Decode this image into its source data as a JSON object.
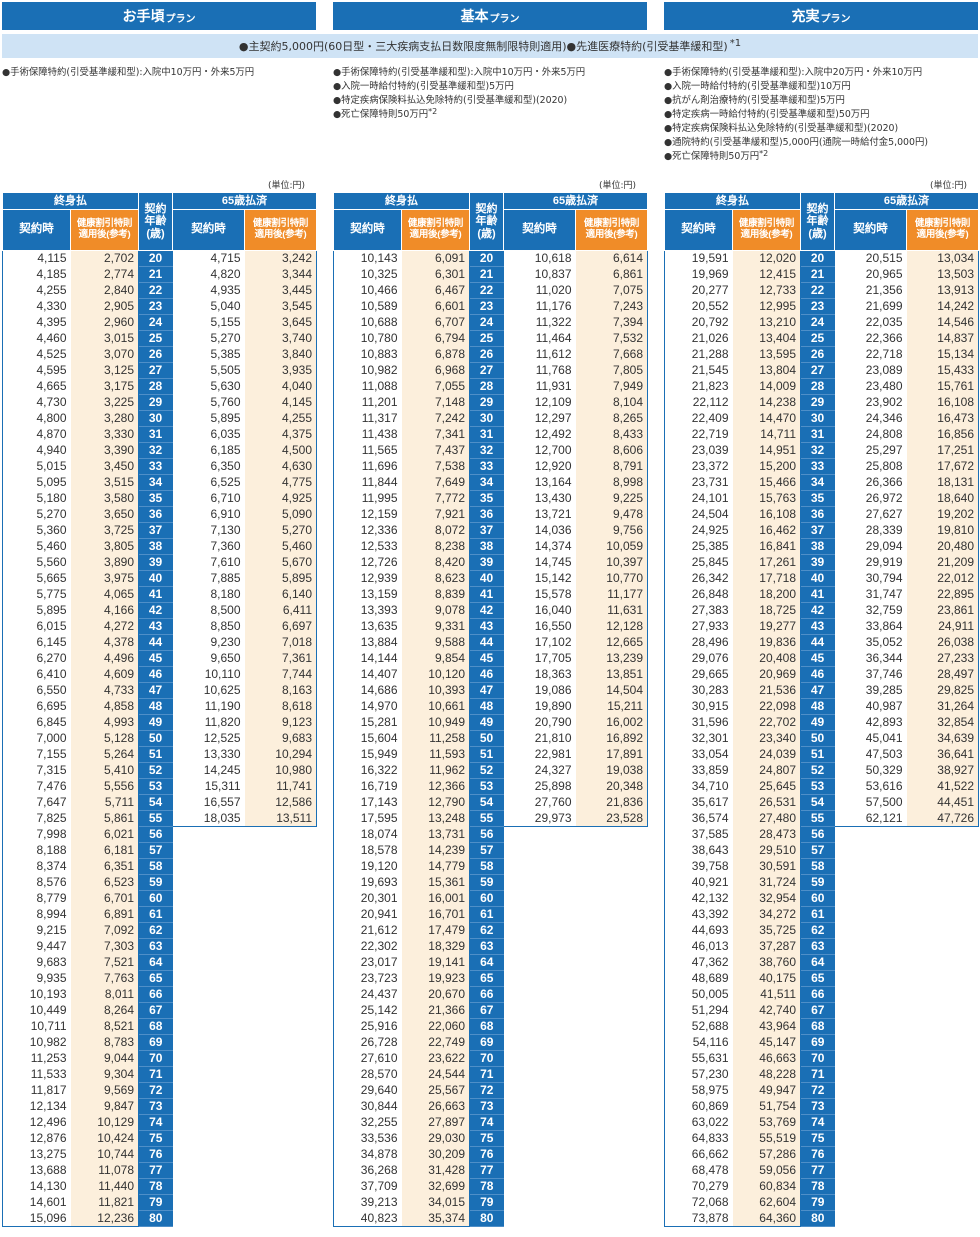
{
  "plans": [
    {
      "name": "お手頃",
      "suffix": "プラン",
      "riders": [
        {
          "text": "●手術保障特約(引受基準緩和型):入院中10万円・外来5万円",
          "mark": ""
        }
      ]
    },
    {
      "name": "基本",
      "suffix": "プラン",
      "riders": [
        {
          "text": "●手術保障特約(引受基準緩和型):入院中10万円・外来5万円",
          "mark": ""
        },
        {
          "text": "●入院一時給付特約(引受基準緩和型)5万円",
          "mark": ""
        },
        {
          "text": "●特定疾病保険料払込免除特約(引受基準緩和型)(2020)",
          "mark": ""
        },
        {
          "text": "●死亡保障特則50万円",
          "mark": "*2"
        }
      ]
    },
    {
      "name": "充実",
      "suffix": "プラン",
      "riders": [
        {
          "text": "●手術保障特約(引受基準緩和型):入院中20万円・外来10万円",
          "mark": ""
        },
        {
          "text": "●入院一時給付特約(引受基準緩和型)10万円",
          "mark": ""
        },
        {
          "text": "●抗がん剤治療特約(引受基準緩和型)5万円",
          "mark": ""
        },
        {
          "text": "●特定疾病一時給付特約(引受基準緩和型)50万円",
          "mark": ""
        },
        {
          "text": "●特定疾病保険料払込免除特約(引受基準緩和型)(2020)",
          "mark": ""
        },
        {
          "text": "●通院特約(引受基準緩和型)5,000円(通院一時給付金5,000円)",
          "mark": ""
        },
        {
          "text": "●死亡保障特則50万円",
          "mark": "*2"
        }
      ]
    }
  ],
  "common": {
    "text": "●主契約5,000円(60日型・三大疾病支払日数限度無制限特則適用)●先進医療特約(引受基準緩和型)",
    "mark": "*1"
  },
  "unit": "(単位:円)",
  "headers": {
    "lifetime": "終身払",
    "paid65": "65歳払済",
    "contract": "契約時",
    "discount": "健康割引特則適用後(参考)",
    "age": "契約年齢(歳)"
  },
  "tables": [
    {
      "lifetime": [
        [
          4115,
          2702
        ],
        [
          4185,
          2774
        ],
        [
          4255,
          2840
        ],
        [
          4330,
          2905
        ],
        [
          4395,
          2960
        ],
        [
          4460,
          3015
        ],
        [
          4525,
          3070
        ],
        [
          4595,
          3125
        ],
        [
          4665,
          3175
        ],
        [
          4730,
          3225
        ],
        [
          4800,
          3280
        ],
        [
          4870,
          3330
        ],
        [
          4940,
          3390
        ],
        [
          5015,
          3450
        ],
        [
          5095,
          3515
        ],
        [
          5180,
          3580
        ],
        [
          5270,
          3650
        ],
        [
          5360,
          3725
        ],
        [
          5460,
          3805
        ],
        [
          5560,
          3890
        ],
        [
          5665,
          3975
        ],
        [
          5775,
          4065
        ],
        [
          5895,
          4166
        ],
        [
          6015,
          4272
        ],
        [
          6145,
          4378
        ],
        [
          6270,
          4496
        ],
        [
          6410,
          4609
        ],
        [
          6550,
          4733
        ],
        [
          6695,
          4858
        ],
        [
          6845,
          4993
        ],
        [
          7000,
          5128
        ],
        [
          7155,
          5264
        ],
        [
          7315,
          5410
        ],
        [
          7476,
          5556
        ],
        [
          7647,
          5711
        ],
        [
          7825,
          5861
        ],
        [
          7998,
          6021
        ],
        [
          8188,
          6181
        ],
        [
          8374,
          6351
        ],
        [
          8576,
          6523
        ],
        [
          8779,
          6701
        ],
        [
          8994,
          6891
        ],
        [
          9215,
          7092
        ],
        [
          9447,
          7303
        ],
        [
          9683,
          7521
        ],
        [
          9935,
          7763
        ],
        [
          10193,
          8011
        ],
        [
          10449,
          8264
        ],
        [
          10711,
          8521
        ],
        [
          10982,
          8783
        ],
        [
          11253,
          9044
        ],
        [
          11533,
          9304
        ],
        [
          11817,
          9569
        ],
        [
          12134,
          9847
        ],
        [
          12496,
          10129
        ],
        [
          12876,
          10424
        ],
        [
          13275,
          10744
        ],
        [
          13688,
          11078
        ],
        [
          14130,
          11440
        ],
        [
          14601,
          11821
        ],
        [
          15096,
          12236
        ]
      ],
      "paid65": [
        [
          4715,
          3242
        ],
        [
          4820,
          3344
        ],
        [
          4935,
          3445
        ],
        [
          5040,
          3545
        ],
        [
          5155,
          3645
        ],
        [
          5270,
          3740
        ],
        [
          5385,
          3840
        ],
        [
          5505,
          3935
        ],
        [
          5630,
          4040
        ],
        [
          5760,
          4145
        ],
        [
          5895,
          4255
        ],
        [
          6035,
          4375
        ],
        [
          6185,
          4500
        ],
        [
          6350,
          4630
        ],
        [
          6525,
          4775
        ],
        [
          6710,
          4925
        ],
        [
          6910,
          5090
        ],
        [
          7130,
          5270
        ],
        [
          7360,
          5460
        ],
        [
          7610,
          5670
        ],
        [
          7885,
          5895
        ],
        [
          8180,
          6140
        ],
        [
          8500,
          6411
        ],
        [
          8850,
          6697
        ],
        [
          9230,
          7018
        ],
        [
          9650,
          7361
        ],
        [
          10110,
          7744
        ],
        [
          10625,
          8163
        ],
        [
          11190,
          8618
        ],
        [
          11820,
          9123
        ],
        [
          12525,
          9683
        ],
        [
          13330,
          10294
        ],
        [
          14245,
          10980
        ],
        [
          15311,
          11741
        ],
        [
          16557,
          12586
        ],
        [
          18035,
          13511
        ]
      ]
    },
    {
      "lifetime": [
        [
          10143,
          6091
        ],
        [
          10325,
          6301
        ],
        [
          10466,
          6467
        ],
        [
          10589,
          6601
        ],
        [
          10688,
          6707
        ],
        [
          10780,
          6794
        ],
        [
          10883,
          6878
        ],
        [
          10982,
          6968
        ],
        [
          11088,
          7055
        ],
        [
          11201,
          7148
        ],
        [
          11317,
          7242
        ],
        [
          11438,
          7341
        ],
        [
          11565,
          7437
        ],
        [
          11696,
          7538
        ],
        [
          11844,
          7649
        ],
        [
          11995,
          7772
        ],
        [
          12159,
          7921
        ],
        [
          12336,
          8072
        ],
        [
          12533,
          8238
        ],
        [
          12726,
          8420
        ],
        [
          12939,
          8623
        ],
        [
          13159,
          8839
        ],
        [
          13393,
          9078
        ],
        [
          13635,
          9331
        ],
        [
          13884,
          9588
        ],
        [
          14144,
          9854
        ],
        [
          14407,
          10120
        ],
        [
          14686,
          10393
        ],
        [
          14970,
          10661
        ],
        [
          15281,
          10949
        ],
        [
          15604,
          11258
        ],
        [
          15949,
          11593
        ],
        [
          16322,
          11962
        ],
        [
          16719,
          12366
        ],
        [
          17143,
          12790
        ],
        [
          17595,
          13248
        ],
        [
          18074,
          13731
        ],
        [
          18578,
          14239
        ],
        [
          19120,
          14779
        ],
        [
          19693,
          15361
        ],
        [
          20301,
          16001
        ],
        [
          20941,
          16701
        ],
        [
          21612,
          17479
        ],
        [
          22302,
          18329
        ],
        [
          23017,
          19141
        ],
        [
          23723,
          19923
        ],
        [
          24437,
          20670
        ],
        [
          25142,
          21366
        ],
        [
          25916,
          22060
        ],
        [
          26728,
          22749
        ],
        [
          27610,
          23622
        ],
        [
          28570,
          24544
        ],
        [
          29640,
          25567
        ],
        [
          30844,
          26663
        ],
        [
          32255,
          27897
        ],
        [
          33536,
          29030
        ],
        [
          34878,
          30209
        ],
        [
          36268,
          31428
        ],
        [
          37709,
          32699
        ],
        [
          39213,
          34015
        ],
        [
          40823,
          35374
        ]
      ],
      "paid65": [
        [
          10618,
          6614
        ],
        [
          10837,
          6861
        ],
        [
          11020,
          7075
        ],
        [
          11176,
          7243
        ],
        [
          11322,
          7394
        ],
        [
          11464,
          7532
        ],
        [
          11612,
          7668
        ],
        [
          11768,
          7805
        ],
        [
          11931,
          7949
        ],
        [
          12109,
          8104
        ],
        [
          12297,
          8265
        ],
        [
          12492,
          8433
        ],
        [
          12700,
          8606
        ],
        [
          12920,
          8791
        ],
        [
          13164,
          8998
        ],
        [
          13430,
          9225
        ],
        [
          13721,
          9478
        ],
        [
          14036,
          9756
        ],
        [
          14374,
          10059
        ],
        [
          14745,
          10397
        ],
        [
          15142,
          10770
        ],
        [
          15578,
          11177
        ],
        [
          16040,
          11631
        ],
        [
          16550,
          12128
        ],
        [
          17102,
          12665
        ],
        [
          17705,
          13239
        ],
        [
          18363,
          13851
        ],
        [
          19086,
          14504
        ],
        [
          19890,
          15211
        ],
        [
          20790,
          16002
        ],
        [
          21810,
          16892
        ],
        [
          22981,
          17891
        ],
        [
          24327,
          19038
        ],
        [
          25898,
          20348
        ],
        [
          27760,
          21836
        ],
        [
          29973,
          23528
        ]
      ]
    },
    {
      "lifetime": [
        [
          19591,
          12020
        ],
        [
          19969,
          12415
        ],
        [
          20277,
          12733
        ],
        [
          20552,
          12995
        ],
        [
          20792,
          13210
        ],
        [
          21026,
          13404
        ],
        [
          21288,
          13595
        ],
        [
          21545,
          13804
        ],
        [
          21823,
          14009
        ],
        [
          22112,
          14238
        ],
        [
          22409,
          14470
        ],
        [
          22719,
          14711
        ],
        [
          23039,
          14951
        ],
        [
          23372,
          15200
        ],
        [
          23731,
          15466
        ],
        [
          24101,
          15763
        ],
        [
          24504,
          16108
        ],
        [
          24925,
          16462
        ],
        [
          25385,
          16841
        ],
        [
          25845,
          17261
        ],
        [
          26342,
          17718
        ],
        [
          26848,
          18200
        ],
        [
          27383,
          18725
        ],
        [
          27933,
          19277
        ],
        [
          28496,
          19836
        ],
        [
          29076,
          20408
        ],
        [
          29665,
          20969
        ],
        [
          30283,
          21536
        ],
        [
          30915,
          22098
        ],
        [
          31596,
          22702
        ],
        [
          32301,
          23340
        ],
        [
          33054,
          24039
        ],
        [
          33859,
          24807
        ],
        [
          34710,
          25645
        ],
        [
          35617,
          26531
        ],
        [
          36574,
          27480
        ],
        [
          37585,
          28473
        ],
        [
          38643,
          29510
        ],
        [
          39758,
          30591
        ],
        [
          40921,
          31724
        ],
        [
          42132,
          32954
        ],
        [
          43392,
          34272
        ],
        [
          44693,
          35725
        ],
        [
          46013,
          37287
        ],
        [
          47362,
          38760
        ],
        [
          48689,
          40175
        ],
        [
          50005,
          41511
        ],
        [
          51294,
          42740
        ],
        [
          52688,
          43964
        ],
        [
          54116,
          45147
        ],
        [
          55631,
          46663
        ],
        [
          57230,
          48228
        ],
        [
          58975,
          49947
        ],
        [
          60869,
          51754
        ],
        [
          63022,
          53769
        ],
        [
          64833,
          55519
        ],
        [
          66662,
          57286
        ],
        [
          68478,
          59056
        ],
        [
          70279,
          60834
        ],
        [
          72068,
          62604
        ],
        [
          73878,
          64360
        ]
      ],
      "paid65": [
        [
          20515,
          13034
        ],
        [
          20965,
          13503
        ],
        [
          21356,
          13913
        ],
        [
          21699,
          14242
        ],
        [
          22035,
          14546
        ],
        [
          22366,
          14837
        ],
        [
          22718,
          15134
        ],
        [
          23089,
          15433
        ],
        [
          23480,
          15761
        ],
        [
          23902,
          16108
        ],
        [
          24346,
          16473
        ],
        [
          24808,
          16856
        ],
        [
          25297,
          17251
        ],
        [
          25808,
          17672
        ],
        [
          26366,
          18131
        ],
        [
          26972,
          18640
        ],
        [
          27627,
          19202
        ],
        [
          28339,
          19810
        ],
        [
          29094,
          20480
        ],
        [
          29919,
          21209
        ],
        [
          30794,
          22012
        ],
        [
          31747,
          22895
        ],
        [
          32759,
          23861
        ],
        [
          33864,
          24911
        ],
        [
          35052,
          26038
        ],
        [
          36344,
          27233
        ],
        [
          37746,
          28497
        ],
        [
          39285,
          29825
        ],
        [
          40987,
          31264
        ],
        [
          42893,
          32854
        ],
        [
          45041,
          34639
        ],
        [
          47503,
          36641
        ],
        [
          50329,
          38927
        ],
        [
          53616,
          41522
        ],
        [
          57500,
          44451
        ],
        [
          62121,
          47726
        ]
      ]
    }
  ]
}
